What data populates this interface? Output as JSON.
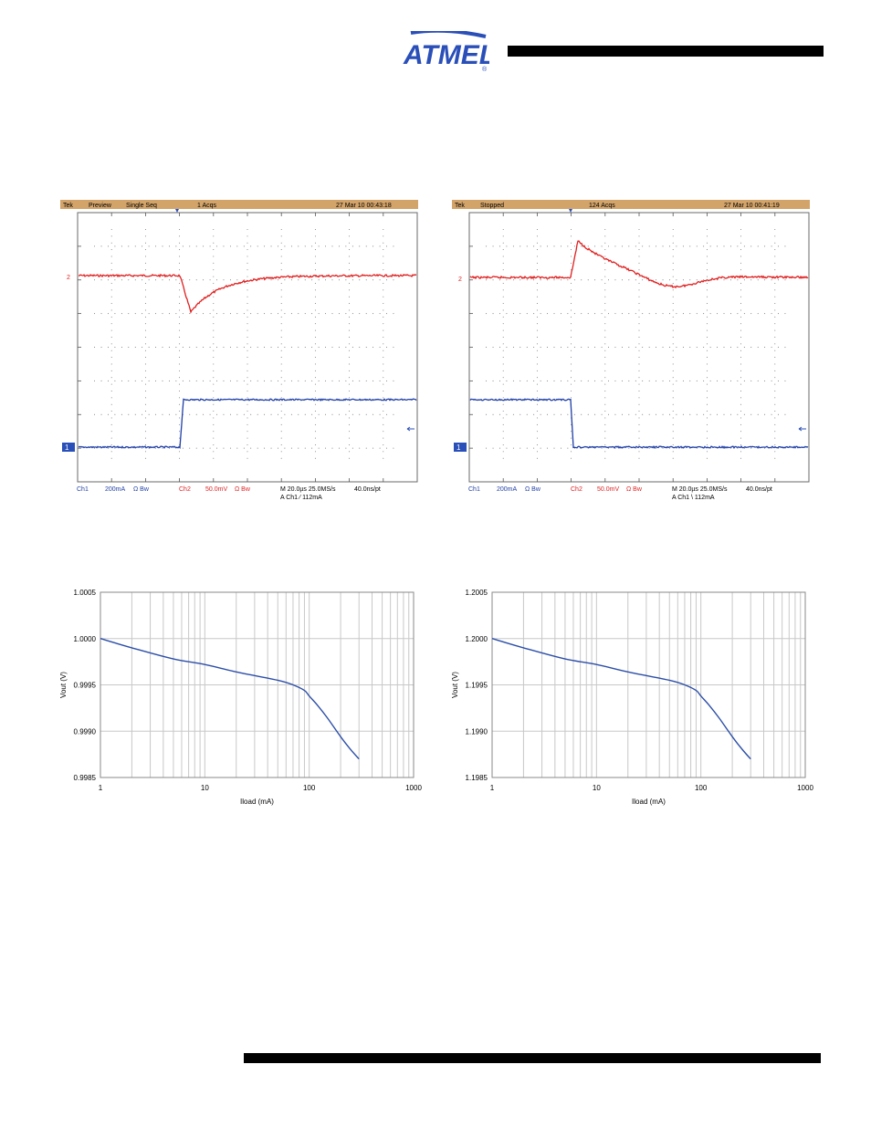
{
  "brand": {
    "logo_text": "ATMEL",
    "registered": "®"
  },
  "colors": {
    "scope_header": "#d3a46a",
    "ch1": "#1f3fa6",
    "ch2": "#e01f1f",
    "grid": "#b0b0b0",
    "marker": "#2a4fb8",
    "curve": "#2b4ea8"
  },
  "scopes": [
    {
      "header": {
        "brand": "Tek",
        "mode": "Preview",
        "acq_mode": "Single Seq",
        "acqs": "1 Acqs",
        "timestamp": "27 Mar 10 00:43:18"
      },
      "ch2_marker": "2",
      "ch1_marker": "1",
      "footer_line1": {
        "ch1": "Ch1",
        "ch1_scale": "200mA",
        "ch1_units": "Ω  Bw",
        "ch2": "Ch2",
        "ch2_scale": "50.0mV",
        "ch2_units": "Ω  Bw",
        "timebase": "M 20.0µs 25.0MS/s",
        "record": "40.0ns/pt"
      },
      "footer_line2": {
        "trigger": "A  Ch1  ⁄  112mA"
      },
      "edge": "up"
    },
    {
      "header": {
        "brand": "Tek",
        "mode": "Stopped",
        "acq_mode": "",
        "acqs": "124 Acqs",
        "timestamp": "27 Mar 10 00:41:19"
      },
      "ch2_marker": "2",
      "ch1_marker": "1",
      "footer_line1": {
        "ch1": "Ch1",
        "ch1_scale": "200mA",
        "ch1_units": "Ω  Bw",
        "ch2": "Ch2",
        "ch2_scale": "50.0mV",
        "ch2_units": "Ω  Bw",
        "timebase": "M 20.0µs 25.0MS/s",
        "record": "40.0ns/pt"
      },
      "footer_line2": {
        "trigger": "A  Ch1  \\  112mA"
      },
      "edge": "down"
    }
  ],
  "chart_data": [
    {
      "type": "line",
      "xlabel": "Iload (mA)",
      "ylabel": "Vout (V)",
      "xscale": "log",
      "xlim": [
        1,
        1000
      ],
      "xticks": [
        "1",
        "10",
        "100",
        "1000"
      ],
      "ylim": [
        0.9985,
        1.0005
      ],
      "yticks": [
        "0.9985",
        "0.9990",
        "0.9995",
        "1.0000",
        "1.0005"
      ],
      "grid": true,
      "series": [
        {
          "x": [
            1,
            2,
            5,
            10,
            20,
            50,
            70,
            90,
            100,
            120,
            150,
            200,
            250,
            300
          ],
          "values": [
            1.0,
            0.9999,
            0.99978,
            0.99972,
            0.99964,
            0.99955,
            0.9995,
            0.99944,
            0.99938,
            0.99928,
            0.99914,
            0.99894,
            0.9988,
            0.9987
          ]
        }
      ]
    },
    {
      "type": "line",
      "xlabel": "Iload (mA)",
      "ylabel": "Vout (V)",
      "xscale": "log",
      "xlim": [
        1,
        1000
      ],
      "xticks": [
        "1",
        "10",
        "100",
        "1000"
      ],
      "ylim": [
        1.1985,
        1.2005
      ],
      "yticks": [
        "1.1985",
        "1.1990",
        "1.1995",
        "1.2000",
        "1.2005"
      ],
      "grid": true,
      "series": [
        {
          "x": [
            1,
            2,
            5,
            10,
            20,
            50,
            70,
            90,
            100,
            120,
            150,
            200,
            250,
            300
          ],
          "values": [
            1.2,
            1.1999,
            1.19978,
            1.19972,
            1.19964,
            1.19955,
            1.1995,
            1.19944,
            1.19938,
            1.19928,
            1.19914,
            1.19894,
            1.1988,
            1.1987
          ]
        }
      ]
    }
  ]
}
